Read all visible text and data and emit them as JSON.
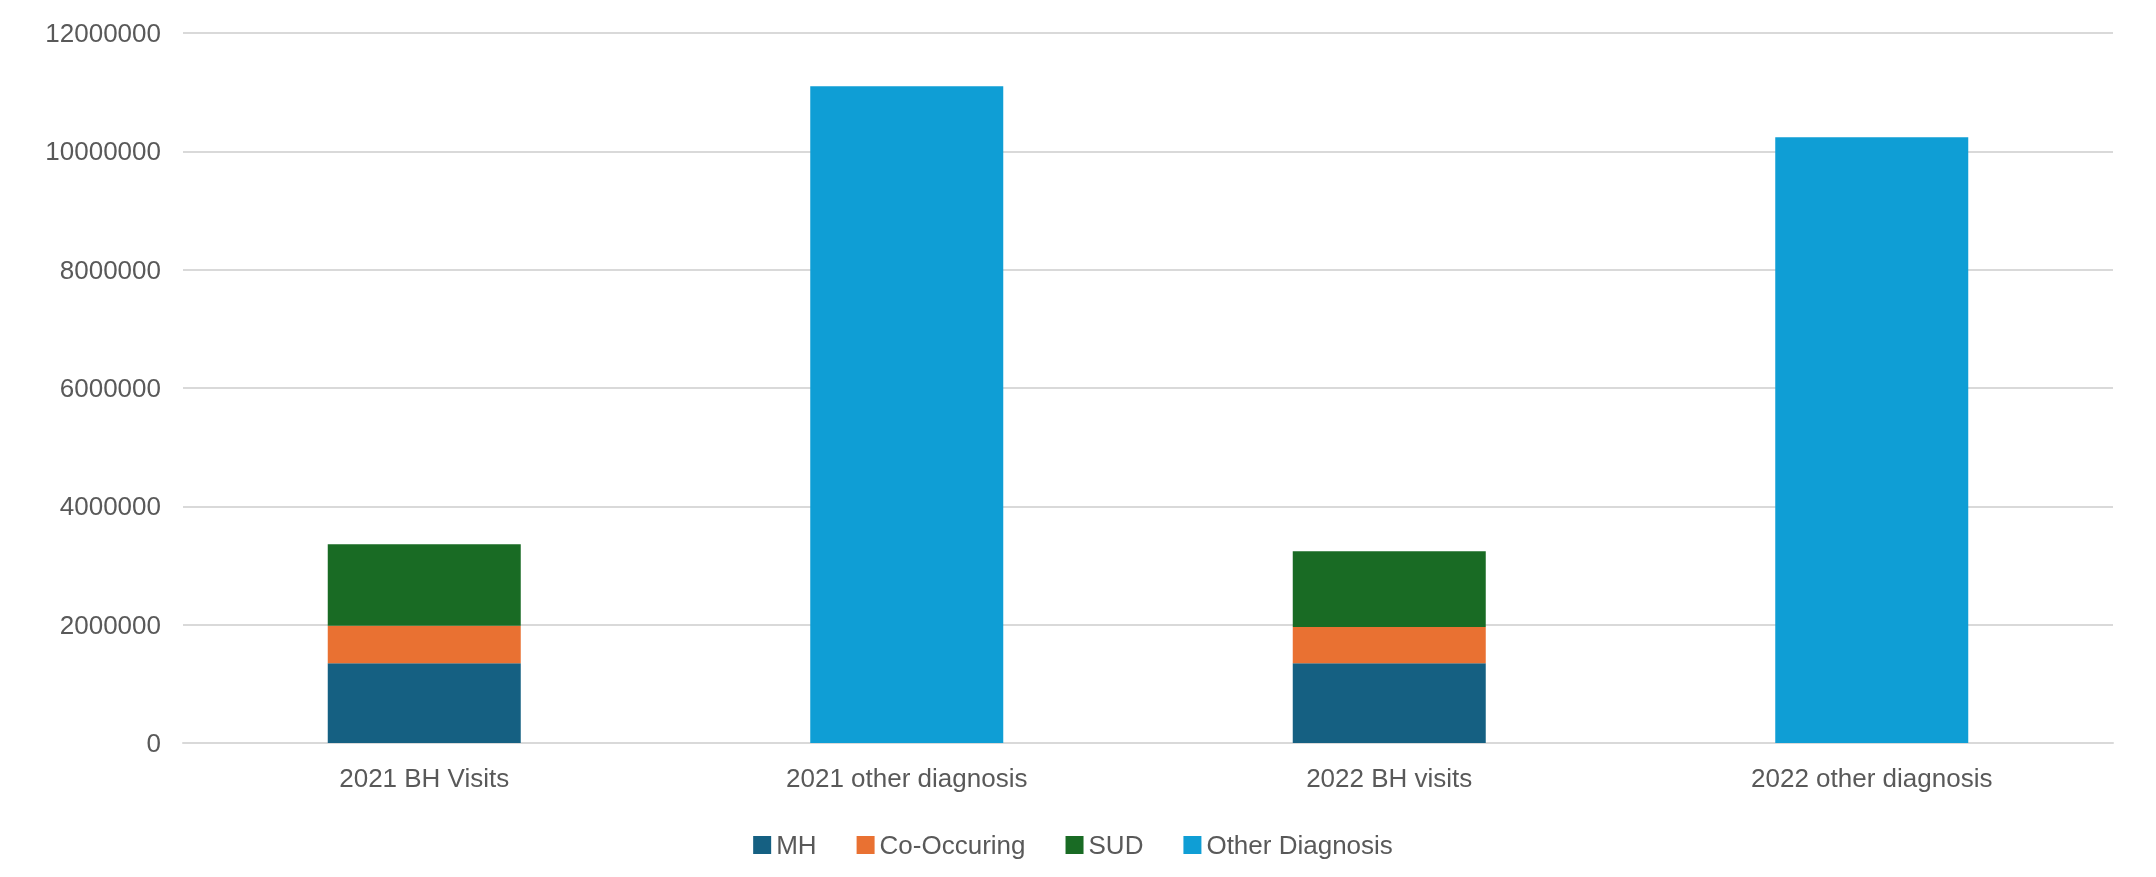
{
  "chart_data": {
    "type": "bar",
    "stacked": true,
    "categories": [
      "2021 BH Visits",
      "2021 other diagnosis",
      "2022 BH visits",
      "2022 other diagnosis"
    ],
    "series": [
      {
        "name": "MH",
        "color": "#156082",
        "values": [
          1350000,
          null,
          1350000,
          null
        ]
      },
      {
        "name": "Co-Occuring",
        "color": "#e97132",
        "values": [
          630000,
          null,
          610000,
          null
        ]
      },
      {
        "name": "SUD",
        "color": "#196b24",
        "values": [
          1380000,
          null,
          1280000,
          null
        ]
      },
      {
        "name": "Other Diagnosis",
        "color": "#0f9ed5",
        "values": [
          null,
          11100000,
          null,
          10240000
        ]
      }
    ],
    "ylim": [
      0,
      12000000
    ],
    "yticks": [
      0,
      2000000,
      4000000,
      6000000,
      8000000,
      10000000,
      12000000
    ],
    "grid": "y",
    "legend": "bottom"
  }
}
